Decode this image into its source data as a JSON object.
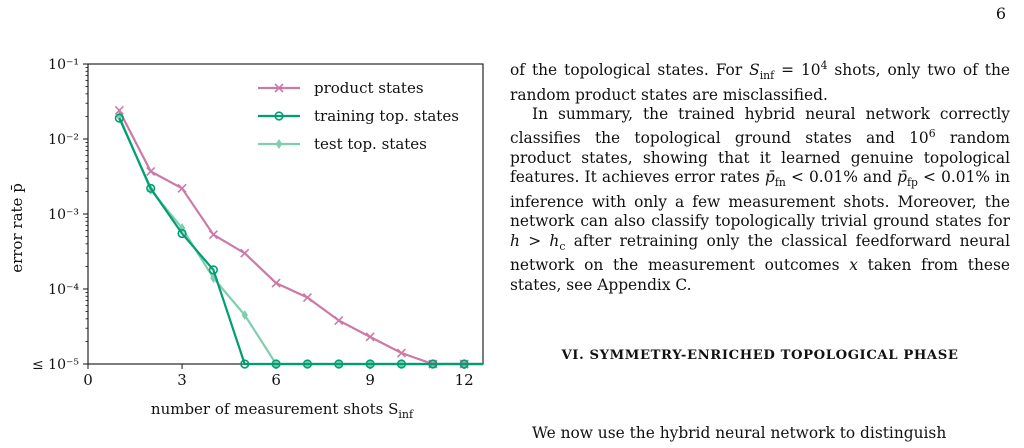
{
  "page": {
    "number": "6"
  },
  "figure": {
    "ylabel": "error rate p̄",
    "xlabel": "number of measurement shots S",
    "xlabel_sub": "inf",
    "chart_data": {
      "type": "line",
      "yscale": "log",
      "xlim": [
        0,
        12.6
      ],
      "ylim": [
        1e-05,
        0.1
      ],
      "xticks": [
        0,
        3,
        6,
        9,
        12
      ],
      "xtick_labels": [
        "0",
        "3",
        "6",
        "9",
        "12"
      ],
      "yticks": [
        0.1,
        0.01,
        0.001,
        0.0001,
        1e-05
      ],
      "ytick_labels": [
        "10⁻¹",
        "10⁻²",
        "10⁻³",
        "10⁻⁴",
        "≤ 10⁻⁵"
      ],
      "xlabel": "number of measurement shots S_inf",
      "ylabel": "error rate p̄",
      "grid": false,
      "legend_position": "top-right",
      "series": [
        {
          "name": "product states",
          "color": "#cc79a7",
          "marker": "x",
          "x": [
            1,
            2,
            3,
            4,
            5,
            6,
            7,
            8,
            9,
            10,
            11,
            12
          ],
          "y": [
            0.024,
            0.0037,
            0.0022,
            0.00053,
            0.0003,
            0.00012,
            7.7e-05,
            3.8e-05,
            2.3e-05,
            1.4e-05,
            1e-05,
            1e-05
          ]
        },
        {
          "name": "training top. states",
          "color": "#009e73",
          "marker": "o",
          "x": [
            1,
            2,
            3,
            4,
            5,
            6,
            7,
            8,
            9,
            10,
            11,
            12
          ],
          "y": [
            0.019,
            0.0022,
            0.00055,
            0.00018,
            1e-05,
            1e-05,
            1e-05,
            1e-05,
            1e-05,
            1e-05,
            1e-05,
            1e-05
          ]
        },
        {
          "name": "test top. states",
          "color": "#7fcfae",
          "marker": "d",
          "x": [
            1,
            2,
            3,
            4,
            5,
            6,
            7,
            8,
            9,
            10,
            11,
            12
          ],
          "y": [
            0.02,
            0.0021,
            0.00065,
            0.00014,
            4.5e-05,
            1e-05,
            1e-05,
            1e-05,
            1e-05,
            1e-05,
            1e-05,
            1e-05
          ]
        }
      ]
    }
  },
  "text": {
    "para1": [
      "of the topological states. For ",
      "S",
      "inf",
      " = 10",
      "4",
      " shots, only two of the random product states are misclassified."
    ],
    "para2": [
      "In summary, the trained hybrid neural network correctly classifies the topological ground states and 10",
      "6",
      " random product states, showing that it learned genuine topological features. It achieves error rates ",
      "p̄",
      "fn",
      " < 0.01% and ",
      "p̄",
      "fp",
      " < 0.01% in inference with only a few measurement shots. Moreover, the network can also classify topologically trivial ground states for ",
      "h > h",
      "c",
      " after retraining only the classical feedforward neural network on the measurement outcomes ",
      "x",
      " taken from these states, see Appendix C."
    ],
    "heading": "VI.   SYMMETRY-ENRICHED TOPOLOGICAL PHASE",
    "para3": "We now use the hybrid neural network to distinguish"
  }
}
